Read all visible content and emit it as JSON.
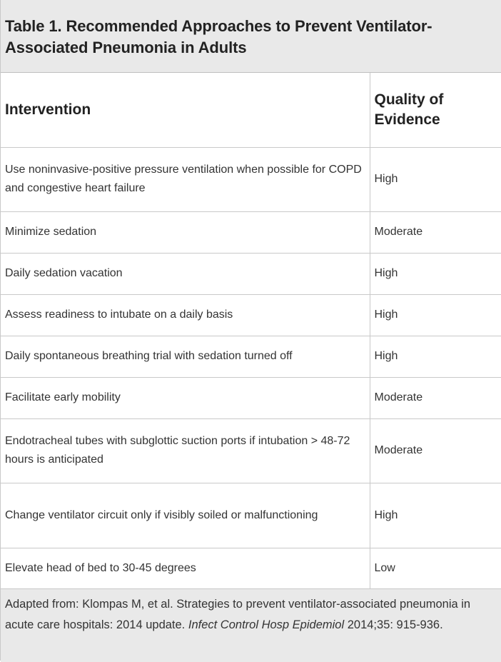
{
  "title": "Table 1. Recommended Approaches to Prevent Ventilator-Associated Pneumonia in Adults",
  "headers": {
    "intervention": "Intervention",
    "quality": "Quality of Evidence"
  },
  "rows": [
    {
      "intervention": "Use noninvasive-positive pressure ventilation when possible for COPD and congestive heart failure",
      "quality": "High"
    },
    {
      "intervention": "Minimize sedation",
      "quality": "Moderate"
    },
    {
      "intervention": "Daily sedation vacation",
      "quality": "High"
    },
    {
      "intervention": "Assess readiness to intubate on a daily basis",
      "quality": "High"
    },
    {
      "intervention": "Daily spontaneous breathing trial with sedation turned off",
      "quality": "High"
    },
    {
      "intervention": "Facilitate early mobility",
      "quality": "Moderate"
    },
    {
      "intervention": "Endotracheal tubes with subglottic suction ports if intubation > 48-72 hours is anticipated",
      "quality": "Moderate"
    },
    {
      "intervention": "Change ventilator circuit only if visibly soiled or malfunctioning",
      "quality": "High"
    },
    {
      "intervention": "Elevate head of bed to 30-45 degrees",
      "quality": "Low"
    }
  ],
  "footer": {
    "prefix": "Adapted from: Klompas M, et al. Strategies to prevent ventilator-associated pneumonia in acute care hospitals: 2014 update. ",
    "journal": "Infect Control Hosp Epidemiol",
    "suffix": " 2014;35: 915-936."
  }
}
